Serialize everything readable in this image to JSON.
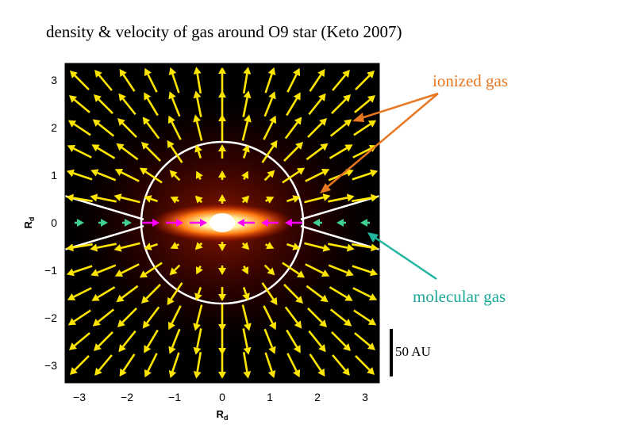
{
  "title": "density & velocity of gas around O9 star (Keto 2007)",
  "annotations": {
    "ionized": "ionized gas",
    "molecular": "molecular gas",
    "scale": "50 AU"
  },
  "axes": {
    "x_label": "R",
    "x_label_sub": "d",
    "y_label": "R",
    "y_label_sub": "d",
    "x_ticks": [
      "−3",
      "−2",
      "−1",
      "0",
      "1",
      "2",
      "3"
    ],
    "y_ticks": [
      "3",
      "2",
      "1",
      "0",
      "−1",
      "−2",
      "−3"
    ],
    "range": [
      -3.35,
      3.35
    ]
  },
  "colors": {
    "ionized_arrow": "#e87722",
    "molecular_arrow": "#22b5a0",
    "flow_arrow": "#ffe600",
    "inflow_arrow": "#ff00ff",
    "neutral_arrow": "#40d090",
    "boundary": "#ffffff"
  },
  "model": {
    "ionized_boundary_radius": 1.7,
    "disk_half_opening": 0.2
  }
}
